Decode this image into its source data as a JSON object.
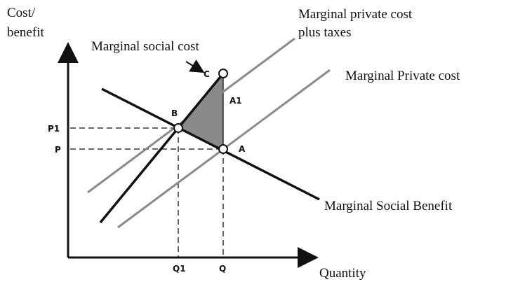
{
  "axes": {
    "y_label_line1": "Cost/",
    "y_label_line2": "benefit",
    "x_label": "Quantity"
  },
  "curves": {
    "msc": "Marginal social cost",
    "mpc_tax_line1": "Marginal private cost",
    "mpc_tax_line2": "plus taxes",
    "mpc": "Marginal Private cost",
    "msb": "Marginal Social Benefit"
  },
  "points": {
    "c": "C",
    "b": "B",
    "a": "A",
    "a1": "A1"
  },
  "levels": {
    "p1": "P1",
    "p": "P",
    "q1": "Q1",
    "q": "Q"
  }
}
